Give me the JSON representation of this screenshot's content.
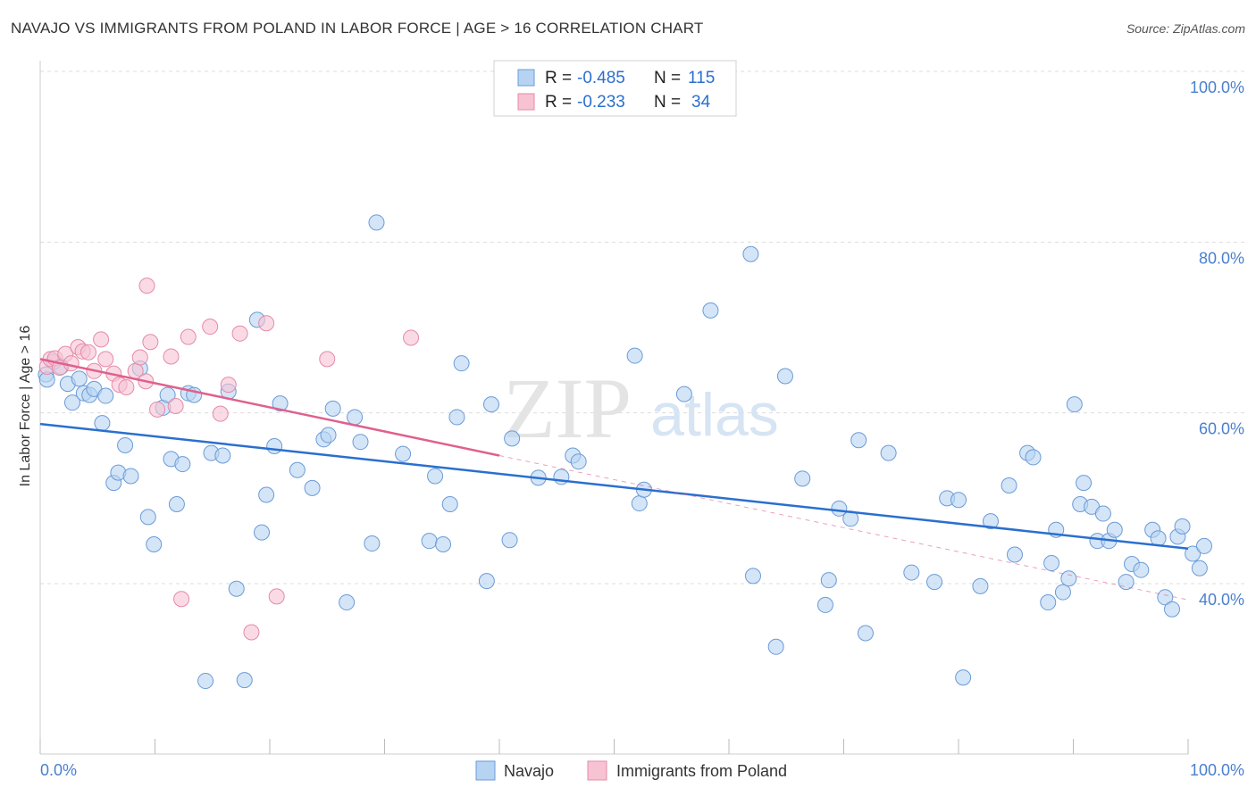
{
  "title": "NAVAJO VS IMMIGRANTS FROM POLAND IN LABOR FORCE | AGE > 16 CORRELATION CHART",
  "source": "Source: ZipAtlas.com",
  "watermark": {
    "zip": "ZIP",
    "atlas": "atlas"
  },
  "colors": {
    "navajo_fill": "#b7d3f2",
    "navajo_stroke": "#6a9bd8",
    "navajo_line": "#2a6fcf",
    "poland_fill": "#f7c3d3",
    "poland_stroke": "#e58aa8",
    "poland_line": "#e0608d",
    "axis_text": "#4a7fcf",
    "grid": "#dddddd"
  },
  "legend": {
    "rows": [
      {
        "r_label": "R =",
        "r_value": "-0.485",
        "n_label": "N =",
        "n_value": "115"
      },
      {
        "r_label": "R =",
        "r_value": "-0.233",
        "n_label": "N =",
        "n_value": "34"
      }
    ]
  },
  "bottom_legend": [
    "Navajo",
    "Immigrants from Poland"
  ],
  "chart_data": {
    "type": "scatter",
    "ylabel": "In Labor Force | Age > 16",
    "xlim": [
      0,
      100
    ],
    "ylim": [
      22,
      103
    ],
    "x_tick_labels": [
      "0.0%",
      "100.0%"
    ],
    "y_ticks": [
      40,
      60,
      80,
      100
    ],
    "y_tick_labels": [
      "40.0%",
      "60.0%",
      "80.0%",
      "100.0%"
    ],
    "grid": true,
    "series": [
      {
        "name": "Navajo",
        "trend": {
          "x": [
            0,
            100
          ],
          "y": [
            58.7,
            44.1
          ]
        },
        "points": [
          [
            0.5,
            64.5
          ],
          [
            0.6,
            63.9
          ],
          [
            1.2,
            66
          ],
          [
            1.8,
            65.4
          ],
          [
            2.4,
            63.4
          ],
          [
            2.8,
            61.2
          ],
          [
            3.4,
            64
          ],
          [
            3.8,
            62.3
          ],
          [
            4.3,
            62.1
          ],
          [
            4.7,
            62.8
          ],
          [
            5.4,
            58.8
          ],
          [
            5.7,
            62
          ],
          [
            6.4,
            51.8
          ],
          [
            6.8,
            53
          ],
          [
            7.4,
            56.2
          ],
          [
            7.9,
            52.6
          ],
          [
            8.7,
            65.2
          ],
          [
            9.4,
            47.8
          ],
          [
            9.9,
            44.6
          ],
          [
            10.7,
            60.6
          ],
          [
            11.1,
            62.1
          ],
          [
            11.4,
            54.6
          ],
          [
            11.9,
            49.3
          ],
          [
            12.4,
            54
          ],
          [
            12.9,
            62.3
          ],
          [
            13.4,
            62.1
          ],
          [
            14.9,
            55.3
          ],
          [
            15.9,
            55
          ],
          [
            14.4,
            28.6
          ],
          [
            16.4,
            62.5
          ],
          [
            17.1,
            39.4
          ],
          [
            17.8,
            28.7
          ],
          [
            18.9,
            70.9
          ],
          [
            19.3,
            46
          ],
          [
            19.7,
            50.4
          ],
          [
            20.4,
            56.1
          ],
          [
            20.9,
            61.1
          ],
          [
            22.4,
            53.3
          ],
          [
            23.7,
            51.2
          ],
          [
            24.7,
            56.9
          ],
          [
            25.1,
            57.4
          ],
          [
            25.5,
            60.5
          ],
          [
            26.7,
            37.8
          ],
          [
            27.4,
            59.5
          ],
          [
            27.9,
            56.6
          ],
          [
            28.9,
            44.7
          ],
          [
            29.3,
            82.3
          ],
          [
            31.6,
            55.2
          ],
          [
            33.9,
            45
          ],
          [
            34.4,
            52.6
          ],
          [
            35.1,
            44.6
          ],
          [
            35.7,
            49.3
          ],
          [
            36.3,
            59.5
          ],
          [
            36.7,
            65.8
          ],
          [
            38.9,
            40.3
          ],
          [
            39.3,
            61
          ],
          [
            40.9,
            45.1
          ],
          [
            41.1,
            57
          ],
          [
            43.4,
            52.4
          ],
          [
            45.4,
            52.5
          ],
          [
            46.4,
            55
          ],
          [
            46.9,
            54.3
          ],
          [
            51.8,
            66.7
          ],
          [
            52.2,
            49.4
          ],
          [
            52.6,
            51
          ],
          [
            56.1,
            62.2
          ],
          [
            58.4,
            72
          ],
          [
            61.9,
            78.6
          ],
          [
            62.1,
            40.9
          ],
          [
            64.1,
            32.6
          ],
          [
            64.9,
            64.3
          ],
          [
            66.4,
            52.3
          ],
          [
            68.4,
            37.5
          ],
          [
            68.7,
            40.4
          ],
          [
            69.6,
            48.8
          ],
          [
            70.6,
            47.6
          ],
          [
            71.3,
            56.8
          ],
          [
            71.9,
            34.2
          ],
          [
            73.9,
            55.3
          ],
          [
            75.9,
            41.3
          ],
          [
            77.9,
            40.2
          ],
          [
            79.0,
            50
          ],
          [
            80.0,
            49.8
          ],
          [
            80.4,
            29
          ],
          [
            81.9,
            39.7
          ],
          [
            82.8,
            47.3
          ],
          [
            84.4,
            51.5
          ],
          [
            84.9,
            43.4
          ],
          [
            86.0,
            55.3
          ],
          [
            86.5,
            54.8
          ],
          [
            87.8,
            37.8
          ],
          [
            88.1,
            42.4
          ],
          [
            88.5,
            46.3
          ],
          [
            89.1,
            39
          ],
          [
            89.6,
            40.6
          ],
          [
            90.1,
            61
          ],
          [
            90.6,
            49.3
          ],
          [
            90.9,
            51.8
          ],
          [
            91.6,
            49
          ],
          [
            92.1,
            45
          ],
          [
            92.6,
            48.2
          ],
          [
            93.1,
            45
          ],
          [
            93.6,
            46.3
          ],
          [
            94.6,
            40.2
          ],
          [
            95.1,
            42.3
          ],
          [
            95.9,
            41.6
          ],
          [
            96.9,
            46.3
          ],
          [
            97.4,
            45.3
          ],
          [
            98.0,
            38.4
          ],
          [
            98.6,
            37
          ],
          [
            99.1,
            45.5
          ],
          [
            99.5,
            46.7
          ],
          [
            100.4,
            43.5
          ],
          [
            101.0,
            41.8
          ],
          [
            101.4,
            44.4
          ]
        ]
      },
      {
        "name": "Immigrants from Poland",
        "trend": {
          "x": [
            0,
            40
          ],
          "y": [
            66.3,
            55
          ]
        },
        "trend_dashed": {
          "x": [
            40,
            100
          ],
          "y": [
            55,
            38.1
          ]
        },
        "points": [
          [
            0.6,
            65.4
          ],
          [
            0.9,
            66.3
          ],
          [
            1.3,
            66.4
          ],
          [
            1.7,
            65.3
          ],
          [
            2.2,
            66.9
          ],
          [
            2.7,
            65.8
          ],
          [
            3.3,
            67.7
          ],
          [
            3.7,
            67.2
          ],
          [
            4.2,
            67.1
          ],
          [
            4.7,
            64.9
          ],
          [
            5.3,
            68.6
          ],
          [
            5.7,
            66.3
          ],
          [
            6.4,
            64.6
          ],
          [
            6.9,
            63.3
          ],
          [
            7.5,
            63
          ],
          [
            8.3,
            64.9
          ],
          [
            8.7,
            66.5
          ],
          [
            9.3,
            74.9
          ],
          [
            9.6,
            68.3
          ],
          [
            9.2,
            63.7
          ],
          [
            10.2,
            60.4
          ],
          [
            11.4,
            66.6
          ],
          [
            11.8,
            60.8
          ],
          [
            12.3,
            38.2
          ],
          [
            12.9,
            68.9
          ],
          [
            14.8,
            70.1
          ],
          [
            15.7,
            59.9
          ],
          [
            16.4,
            63.3
          ],
          [
            17.4,
            69.3
          ],
          [
            18.4,
            34.3
          ],
          [
            19.7,
            70.5
          ],
          [
            20.6,
            38.5
          ],
          [
            25.0,
            66.3
          ],
          [
            32.3,
            68.8
          ]
        ]
      }
    ]
  }
}
